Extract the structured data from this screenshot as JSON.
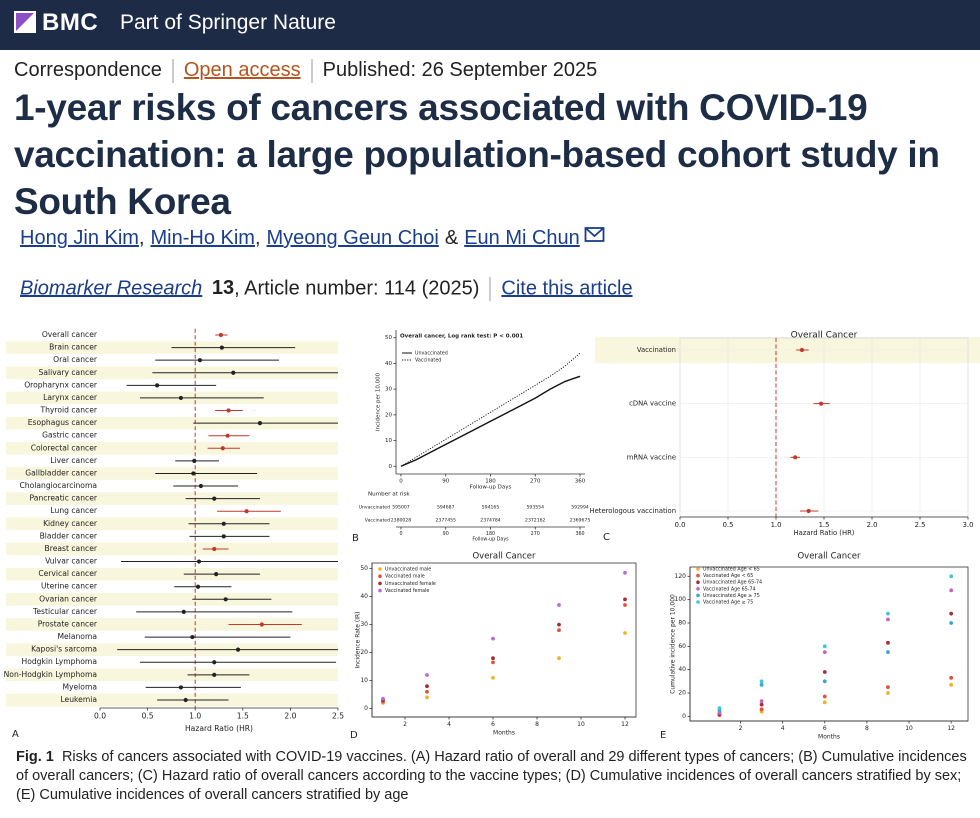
{
  "header": {
    "brand": "BMC",
    "tagline": "Part of Springer Nature"
  },
  "meta": {
    "article_type": "Correspondence",
    "access": "Open access",
    "published": "Published: 26 September 2025"
  },
  "title": "1-year risks of cancers associated with COVID-19 vaccination: a large population-based cohort study in South Korea",
  "authors": [
    "Hong Jin Kim",
    "Min-Ho Kim",
    "Myeong Geun Choi",
    "Eun Mi Chun"
  ],
  "author_separator": ",",
  "author_conjunction": "&",
  "journal": {
    "name": "Biomarker Research",
    "volume": "13",
    "article_number": ", Article number: 114 (2025)",
    "cite": "Cite this article"
  },
  "caption": {
    "label": "Fig. 1",
    "text": "Risks of cancers associated with COVID-19 vaccines. (A) Hazard ratio of overall and 29 different types of cancers; (B) Cumulative incidences of overall cancers; (C) Hazard ratio of overall cancers according to the vaccine types; (D) Cumulative incidences of overall cancers stratified by sex; (E) Cumulative incidences of overall cancers stratified by age"
  },
  "chart_data": [
    {
      "type": "forest",
      "panel_label": "A",
      "categories": [
        "Overall cancer",
        "Brain cancer",
        "Oral cancer",
        "Salivary cancer",
        "Oropharynx cancer",
        "Larynx cancer",
        "Thyroid cancer",
        "Esophagus cancer",
        "Gastric cancer",
        "Colorectal cancer",
        "Liver cancer",
        "Gallbladder cancer",
        "Cholangiocarcinoma",
        "Pancreatic cancer",
        "Lung cancer",
        "Kidney cancer",
        "Bladder cancer",
        "Breast cancer",
        "Vulvar cancer",
        "Cervical cancer",
        "Uterine cancer",
        "Ovarian cancer",
        "Testicular cancer",
        "Prostate cancer",
        "Melanoma",
        "Kaposi's sarcoma",
        "Hodgkin Lymphoma",
        "Non-Hodgkin Lymphoma",
        "Myeloma",
        "Leukemia"
      ],
      "values": [
        1.27,
        1.28,
        1.05,
        1.4,
        0.6,
        0.85,
        1.35,
        1.68,
        1.34,
        1.29,
        0.99,
        0.98,
        1.06,
        1.2,
        1.54,
        1.3,
        1.3,
        1.2,
        1.04,
        1.22,
        1.03,
        1.32,
        0.88,
        1.7,
        0.97,
        1.45,
        1.2,
        1.2,
        0.85,
        0.9
      ],
      "ci_low": [
        1.21,
        0.75,
        0.58,
        0.55,
        0.28,
        0.42,
        1.21,
        0.98,
        1.14,
        1.13,
        0.79,
        0.58,
        0.77,
        0.9,
        1.23,
        0.93,
        0.94,
        1.08,
        0.22,
        0.88,
        0.78,
        0.97,
        0.38,
        1.35,
        0.47,
        0.18,
        0.42,
        0.92,
        0.48,
        0.6
      ],
      "ci_high": [
        1.34,
        2.05,
        1.88,
        2.62,
        1.22,
        1.72,
        1.5,
        2.65,
        1.57,
        1.47,
        1.25,
        1.65,
        1.45,
        1.68,
        1.9,
        1.78,
        1.78,
        1.35,
        2.6,
        1.68,
        1.38,
        1.8,
        2.02,
        2.12,
        2.0,
        2.6,
        2.48,
        1.57,
        1.48,
        1.35
      ],
      "point_colors": [
        "#c0392b",
        "#222222",
        "#222222",
        "#222222",
        "#222222",
        "#222222",
        "#c0392b",
        "#222222",
        "#c0392b",
        "#c0392b",
        "#222222",
        "#222222",
        "#222222",
        "#222222",
        "#c0392b",
        "#222222",
        "#222222",
        "#c0392b",
        "#222222",
        "#222222",
        "#222222",
        "#222222",
        "#222222",
        "#c0392b",
        "#222222",
        "#222222",
        "#222222",
        "#222222",
        "#222222",
        "#222222"
      ],
      "xlim": [
        0,
        2.5
      ],
      "xticks": [
        {
          "value": 0,
          "label": "0.0"
        },
        0.5,
        {
          "value": 1,
          "label": "1.0"
        },
        1.5,
        {
          "value": 2,
          "label": "2.0"
        },
        2.5
      ],
      "xlabel": "Hazard Ratio (HR)",
      "reference_line": 1,
      "reference_color": "#c0392b"
    },
    {
      "type": "line",
      "panel_label": "B",
      "title": "Overall cancer, Log rank test: P < 0.001",
      "x": [
        0,
        30,
        60,
        90,
        120,
        150,
        180,
        210,
        240,
        270,
        300,
        330,
        360
      ],
      "series": [
        {
          "name": "Unvaccinated",
          "color": "#111111",
          "style": "solid",
          "values": [
            0,
            2.5,
            5.5,
            8.5,
            11.5,
            14.5,
            17.5,
            20.5,
            23.5,
            26.5,
            30,
            33,
            35
          ]
        },
        {
          "name": "Vaccinated",
          "color": "#111111",
          "style": "dotted",
          "values": [
            0,
            3.5,
            7,
            10.5,
            14,
            17.5,
            21,
            24.5,
            28,
            31.5,
            35,
            39,
            44
          ]
        }
      ],
      "xlim": [
        -10,
        370
      ],
      "ylim": [
        -3,
        53
      ],
      "xticks": [
        0,
        90,
        180,
        270,
        360
      ],
      "yticks": [
        0,
        10,
        20,
        30,
        40,
        50
      ],
      "xlabel": "Follow-up Days",
      "ylabel": "Incidence per 10,000",
      "legend": "upper left",
      "risk_table": {
        "title": "Number at risk",
        "rows": [
          {
            "name": "Unvaccinated",
            "values": [
              595007,
              594687,
              594165,
              593554,
              592994
            ]
          },
          {
            "name": "Vaccinated",
            "values": [
              2380028,
              2377455,
              2374784,
              2372162,
              2369675
            ]
          }
        ]
      }
    },
    {
      "type": "forest",
      "panel_label": "C",
      "title": "Overall Cancer",
      "categories": [
        "Vaccination",
        "cDNA vaccine",
        "mRNA vaccine",
        "Heterologous vaccination"
      ],
      "values": [
        1.27,
        1.47,
        1.2,
        1.34
      ],
      "ci_low": [
        1.21,
        1.39,
        1.15,
        1.25
      ],
      "ci_high": [
        1.34,
        1.56,
        1.25,
        1.44
      ],
      "color": "#c0392b",
      "xlim": [
        0,
        3
      ],
      "xticks": [
        {
          "value": 0,
          "label": "0.0"
        },
        0.5,
        {
          "value": 1,
          "label": "1.0"
        },
        1.5,
        {
          "value": 2,
          "label": "2.0"
        },
        2.5,
        {
          "value": 3,
          "label": "3.0"
        }
      ],
      "xlabel": "Hazard Ratio (HR)",
      "reference_line": 1,
      "reference_color": "#c0392b",
      "grid": true
    },
    {
      "type": "scatter",
      "panel_label": "D",
      "title": "Overall Cancer",
      "x": [
        1,
        3,
        6,
        9,
        12
      ],
      "series": [
        {
          "name": "Unvaccinated male",
          "color": "#f0b429",
          "values": [
            2,
            4,
            11,
            18,
            27
          ]
        },
        {
          "name": "Vaccinated male",
          "color": "#e0533a",
          "values": [
            2.5,
            6,
            16.5,
            28,
            37
          ]
        },
        {
          "name": "Unvaccinated female",
          "color": "#a0303a",
          "values": [
            3,
            8,
            18,
            30,
            39
          ]
        },
        {
          "name": "Vaccinated female",
          "color": "#b86ad6",
          "values": [
            3.5,
            12,
            25,
            37,
            48.5
          ]
        }
      ],
      "xlim": [
        0.5,
        12.5
      ],
      "ylim": [
        -3,
        52
      ],
      "xticks": [
        2,
        4,
        6,
        8,
        10,
        12
      ],
      "yticks": [
        0,
        10,
        20,
        30,
        40,
        50
      ],
      "xlabel": "Months",
      "ylabel": "Incidence Rate (IR)",
      "legend": "upper left"
    },
    {
      "type": "scatter",
      "panel_label": "E",
      "title": "Overall Cancer",
      "x": [
        1,
        3,
        6,
        9,
        12
      ],
      "series": [
        {
          "name": "Unvaccinated Age < 65",
          "color": "#f0b429",
          "values": [
            1,
            4,
            12,
            20,
            27
          ]
        },
        {
          "name": "Vaccinated Age < 65",
          "color": "#e0533a",
          "values": [
            1,
            6,
            17,
            25,
            33
          ]
        },
        {
          "name": "Unvaccinated Age 65-74",
          "color": "#a0303a",
          "values": [
            2,
            10,
            38,
            63,
            88
          ]
        },
        {
          "name": "Vaccinated Age 65-74",
          "color": "#c064c8",
          "values": [
            3,
            13,
            55,
            83,
            108
          ]
        },
        {
          "name": "Unvaccinated Age ≥ 75",
          "color": "#3aa6d8",
          "values": [
            5,
            27,
            30,
            55,
            80
          ]
        },
        {
          "name": "Vaccinated Age ≥ 75",
          "color": "#3cc8d8",
          "values": [
            7,
            30,
            60,
            88,
            120
          ]
        }
      ],
      "xlim": [
        -0.4,
        12.8
      ],
      "ylim": [
        -4,
        128
      ],
      "xticks": [
        2,
        4,
        6,
        8,
        10,
        12
      ],
      "yticks": [
        0,
        20,
        40,
        60,
        80,
        100,
        120
      ],
      "xlabel": "Months",
      "ylabel": "Cumulative incidence per 10,000",
      "legend": "upper left"
    }
  ]
}
